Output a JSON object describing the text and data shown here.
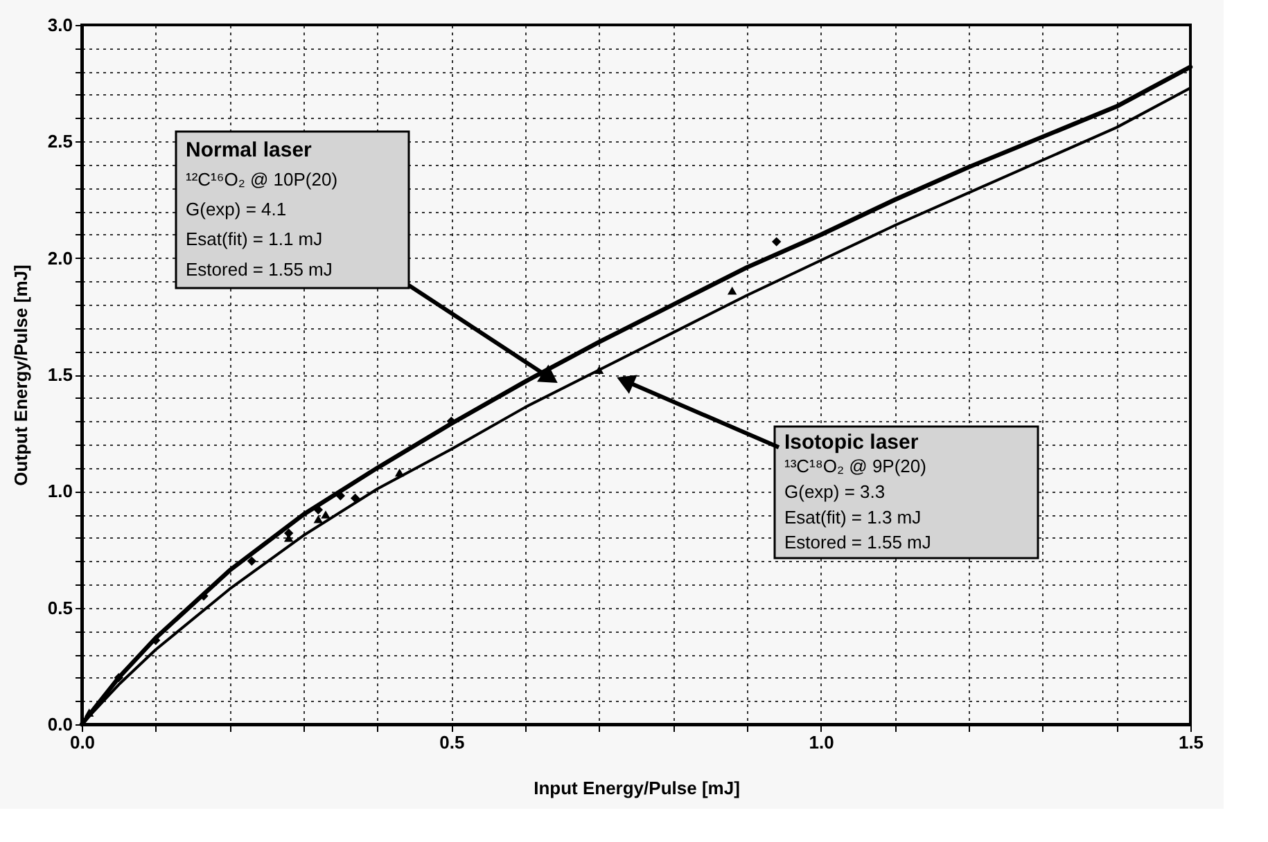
{
  "chart_data": {
    "type": "line",
    "xlabel": "Input Energy/Pulse [mJ]",
    "ylabel": "Output Energy/Pulse [mJ]",
    "xlim": [
      0,
      1.5
    ],
    "ylim": [
      0,
      3.0
    ],
    "xticks": [
      {
        "value": 0,
        "label": "0.0"
      },
      {
        "value": 0.1,
        "label": null
      },
      {
        "value": 0.2,
        "label": null
      },
      {
        "value": 0.3,
        "label": null
      },
      {
        "value": 0.4,
        "label": null
      },
      {
        "value": 0.5,
        "label": "0.5"
      },
      {
        "value": 0.6,
        "label": null
      },
      {
        "value": 0.7,
        "label": null
      },
      {
        "value": 0.8,
        "label": null
      },
      {
        "value": 0.9,
        "label": null
      },
      {
        "value": 1.0,
        "label": "1.0"
      },
      {
        "value": 1.1,
        "label": null
      },
      {
        "value": 1.2,
        "label": null
      },
      {
        "value": 1.3,
        "label": null
      },
      {
        "value": 1.4,
        "label": null
      },
      {
        "value": 1.5,
        "label": "1.5"
      }
    ],
    "yticks": [
      {
        "value": 0,
        "label": "0.0"
      },
      {
        "value": 0.1,
        "label": null
      },
      {
        "value": 0.2,
        "label": null
      },
      {
        "value": 0.3,
        "label": null
      },
      {
        "value": 0.4,
        "label": null
      },
      {
        "value": 0.5,
        "label": "0.5"
      },
      {
        "value": 0.6,
        "label": null
      },
      {
        "value": 0.7,
        "label": null
      },
      {
        "value": 0.8,
        "label": null
      },
      {
        "value": 0.9,
        "label": null
      },
      {
        "value": 1.0,
        "label": "1.0"
      },
      {
        "value": 1.1,
        "label": null
      },
      {
        "value": 1.2,
        "label": null
      },
      {
        "value": 1.3,
        "label": null
      },
      {
        "value": 1.4,
        "label": null
      },
      {
        "value": 1.5,
        "label": "1.5"
      },
      {
        "value": 1.6,
        "label": null
      },
      {
        "value": 1.7,
        "label": null
      },
      {
        "value": 1.8,
        "label": null
      },
      {
        "value": 1.9,
        "label": null
      },
      {
        "value": 2.0,
        "label": "2.0"
      },
      {
        "value": 2.1,
        "label": null
      },
      {
        "value": 2.2,
        "label": null
      },
      {
        "value": 2.3,
        "label": null
      },
      {
        "value": 2.4,
        "label": null
      },
      {
        "value": 2.5,
        "label": "2.5"
      },
      {
        "value": 2.6,
        "label": null
      },
      {
        "value": 2.7,
        "label": null
      },
      {
        "value": 2.8,
        "label": null
      },
      {
        "value": 2.9,
        "label": null
      },
      {
        "value": 3.0,
        "label": "3.0"
      }
    ],
    "grid": true,
    "legend": false,
    "series": [
      {
        "color": "#000000",
        "line_style": "solid",
        "marker": "none",
        "x": [
          0,
          0.05,
          0.1,
          0.2,
          0.3,
          0.4,
          0.5,
          0.6,
          0.7,
          0.8,
          0.9,
          1.0,
          1.1,
          1.2,
          1.3,
          1.4,
          1.5
        ],
        "values": [
          0,
          0.2,
          0.37,
          0.66,
          0.9,
          1.1,
          1.29,
          1.47,
          1.64,
          1.8,
          1.96,
          2.1,
          2.25,
          2.39,
          2.52,
          2.65,
          2.82
        ]
      },
      {
        "color": "#000000",
        "line_style": "solid",
        "marker": "none",
        "x": [
          0,
          0.05,
          0.1,
          0.2,
          0.3,
          0.4,
          0.5,
          0.6,
          0.7,
          0.8,
          0.9,
          1.0,
          1.1,
          1.2,
          1.3,
          1.4,
          1.5
        ],
        "values": [
          0,
          0.17,
          0.32,
          0.58,
          0.81,
          1.01,
          1.18,
          1.36,
          1.52,
          1.68,
          1.84,
          1.99,
          2.14,
          2.28,
          2.42,
          2.56,
          2.73
        ]
      },
      {
        "type": "scatter",
        "color": "#000000",
        "marker": "diamond",
        "x": [
          0.05,
          0.1,
          0.165,
          0.23,
          0.28,
          0.32,
          0.35,
          0.37,
          0.5,
          0.94
        ],
        "values": [
          0.2,
          0.36,
          0.55,
          0.7,
          0.82,
          0.92,
          0.98,
          0.97,
          1.3,
          2.07
        ]
      },
      {
        "type": "scatter",
        "color": "#000000",
        "marker": "triangle",
        "x": [
          0.01,
          0.28,
          0.32,
          0.33,
          0.43,
          0.7,
          0.88
        ],
        "values": [
          0.05,
          0.8,
          0.88,
          0.9,
          1.08,
          1.52,
          1.86
        ]
      }
    ],
    "annotations": [
      "Normal laser\n¹²C¹⁶O₂ @ 10P(20)\nG(exp) = 4.1\nE$_{sat}$(fit) = 1.1 mJ\nE$_{stored}$ = 1.55 mJ",
      "Isotopic laser\n¹³C¹⁸O₂    @ 9P(20)\nG(exp) = 3.3\nE$_{sat}$(fit) = 1.3 mJ\nE$_{stored}$ = 1.55 mJ"
    ]
  }
}
